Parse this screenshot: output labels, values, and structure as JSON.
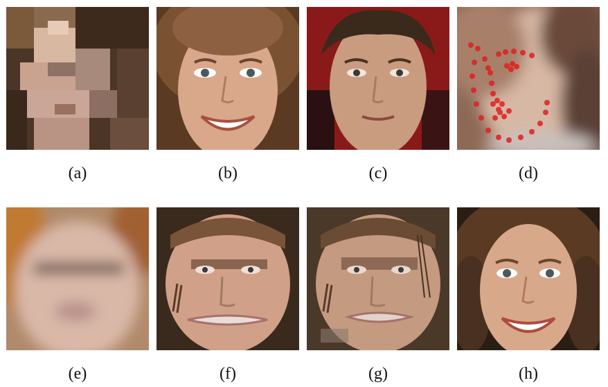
{
  "figure": {
    "panels": [
      {
        "caption": "(a)",
        "description": "pixelated low-resolution face"
      },
      {
        "caption": "(b)",
        "description": "smiling woman face"
      },
      {
        "caption": "(c)",
        "description": "young man face"
      },
      {
        "caption": "(d)",
        "description": "blurred face with red facial landmark points"
      },
      {
        "caption": "(e)",
        "description": "blurry reconstructed face"
      },
      {
        "caption": "(f)",
        "description": "distorted reconstructed face"
      },
      {
        "caption": "(g)",
        "description": "distorted reconstructed face with artifacts"
      },
      {
        "caption": "(h)",
        "description": "smiling woman with curly hair"
      }
    ]
  },
  "colors": {
    "landmark": "#e02020",
    "background": "#ffffff"
  }
}
